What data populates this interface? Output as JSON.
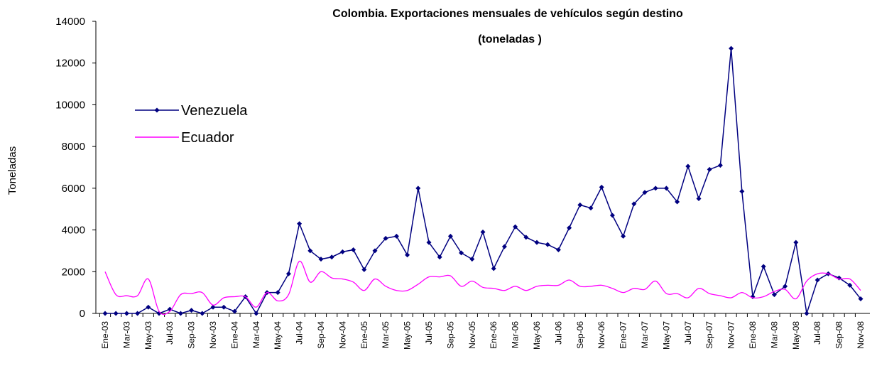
{
  "chart_data": {
    "type": "line",
    "title": "Colombia. Exportaciones mensuales de vehículos según destino",
    "subtitle": "(toneladas )",
    "y_label": "Toneladas",
    "categories": [
      "Ene-03",
      null,
      "Mar-03",
      null,
      "May-03",
      null,
      "Jul-03",
      null,
      "Sep-03",
      null,
      "Nov-03",
      null,
      "Ene-04",
      null,
      "Mar-04",
      null,
      "May-04",
      null,
      "Jul-04",
      null,
      "Sep-04",
      null,
      "Nov-04",
      null,
      "Ene-05",
      null,
      "Mar-05",
      null,
      "May-05",
      null,
      "Jul-05",
      null,
      "Sep-05",
      null,
      "Nov-05",
      null,
      "Ene-06",
      null,
      "Mar-06",
      null,
      "May-06",
      null,
      "Jul-06",
      null,
      "Sep-06",
      null,
      "Nov-06",
      null,
      "Ene-07",
      null,
      "Mar-07",
      null,
      "May-07",
      null,
      "Jul-07",
      null,
      "Sep-07",
      null,
      "Nov-07",
      null,
      "Ene-08",
      null,
      "Mar-08",
      null,
      "May-08",
      null,
      "Jul-08",
      null,
      "Sep-08",
      null,
      "Nov-08"
    ],
    "series": [
      {
        "name": "Venezuela",
        "color": "#000080",
        "marker": true,
        "values": [
          0,
          0,
          0,
          0,
          300,
          0,
          200,
          0,
          150,
          0,
          300,
          300,
          100,
          800,
          0,
          1000,
          1000,
          1900,
          4300,
          3000,
          2600,
          2700,
          2950,
          3050,
          2100,
          3000,
          3600,
          3700,
          2800,
          6000,
          3400,
          2700,
          3700,
          2900,
          2600,
          3900,
          2150,
          3200,
          4150,
          3650,
          3400,
          3300,
          3050,
          4100,
          5200,
          5050,
          6050,
          4700,
          3700,
          5250,
          5800,
          6000,
          6000,
          5350,
          7050,
          5500,
          6900,
          7100,
          12700,
          5850,
          800,
          2250,
          900,
          1300,
          3400,
          0,
          1600,
          1900,
          1700,
          1350,
          700
        ]
      },
      {
        "name": "Ecuador",
        "color": "#ff00ff",
        "marker": false,
        "values": [
          2000,
          900,
          850,
          850,
          1650,
          100,
          100,
          900,
          950,
          1000,
          400,
          750,
          800,
          800,
          300,
          1000,
          600,
          900,
          2500,
          1500,
          2000,
          1700,
          1650,
          1500,
          1100,
          1650,
          1300,
          1100,
          1100,
          1400,
          1750,
          1750,
          1800,
          1300,
          1550,
          1250,
          1200,
          1100,
          1300,
          1100,
          1300,
          1350,
          1350,
          1600,
          1300,
          1300,
          1350,
          1200,
          1000,
          1200,
          1150,
          1550,
          950,
          950,
          750,
          1200,
          950,
          850,
          750,
          1000,
          750,
          800,
          1050,
          1150,
          700,
          1550,
          1900,
          1900,
          1650,
          1650,
          1100
        ]
      }
    ],
    "ylim": [
      0,
      14000
    ],
    "yticks": [
      0,
      2000,
      4000,
      6000,
      8000,
      10000,
      12000,
      14000
    ],
    "grid": false
  }
}
